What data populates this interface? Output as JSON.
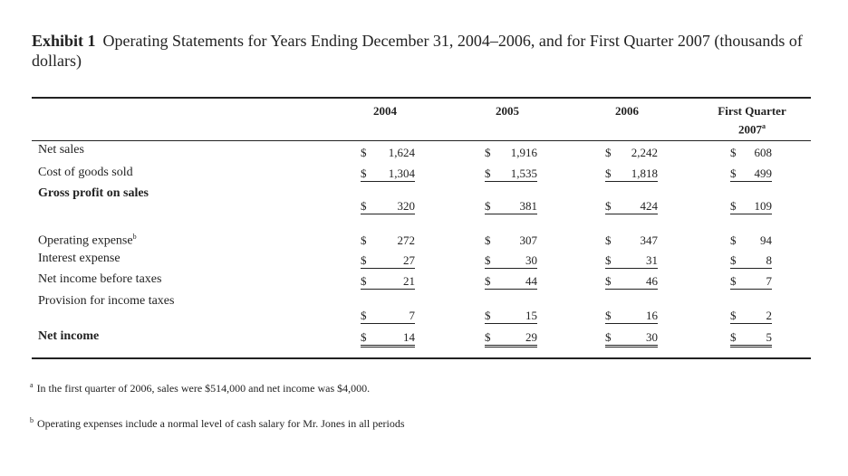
{
  "header": {
    "exhibit": "Exhibit 1",
    "title": "Operating Statements for Years Ending December 31, 2004–2006, and for First Quarter 2007 (thousands of dollars)"
  },
  "table": {
    "columns": [
      {
        "label": "2004"
      },
      {
        "label": "2005"
      },
      {
        "label": "2006"
      },
      {
        "label": "First Quarter 2007",
        "note": "a"
      }
    ],
    "rows": [
      {
        "label": "Net sales",
        "values": [
          "$ 1,624",
          "$ 1,916",
          "$ 2,242",
          "$ 608"
        ]
      },
      {
        "label": "Cost of goods sold",
        "values": [
          "$ 1,304",
          "$ 1,535",
          "$ 1,818",
          "$ 499"
        ]
      },
      {
        "label": "Gross profit on sales",
        "values": [
          "$ 320",
          "$ 381",
          "$ 424",
          "$ 109"
        ]
      },
      {
        "label": "Operating expense",
        "note": "b",
        "values": [
          "$ 272",
          "$ 307",
          "$ 347",
          "$ 94"
        ]
      },
      {
        "label": "Interest expense",
        "values": [
          "$ 27",
          "$ 30",
          "$ 31",
          "$ 8"
        ]
      },
      {
        "label": "Net income before taxes",
        "values": [
          "$ 21",
          "$ 44",
          "$ 46",
          "$ 7"
        ]
      },
      {
        "label": "Provision for income taxes",
        "values": [
          "$ 7",
          "$ 15",
          "$ 16",
          "$ 2"
        ]
      },
      {
        "label": "Net income",
        "values": [
          "$ 14",
          "$ 29",
          "$ 30",
          "$ 5"
        ]
      }
    ]
  },
  "footnotes": [
    {
      "mark": "a",
      "text": "In the first quarter of 2006, sales were $514,000 and net income was $4,000."
    },
    {
      "mark": "b",
      "text": "Operating expenses include a normal level of cash salary for Mr. Jones in all periods"
    }
  ]
}
